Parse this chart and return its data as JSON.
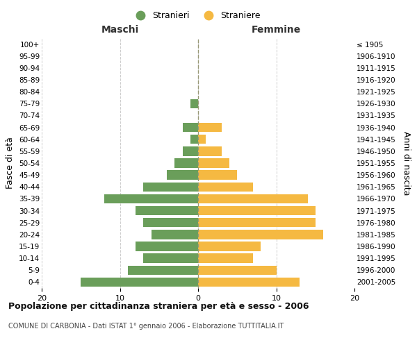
{
  "age_groups": [
    "0-4",
    "5-9",
    "10-14",
    "15-19",
    "20-24",
    "25-29",
    "30-34",
    "35-39",
    "40-44",
    "45-49",
    "50-54",
    "55-59",
    "60-64",
    "65-69",
    "70-74",
    "75-79",
    "80-84",
    "85-89",
    "90-94",
    "95-99",
    "100+"
  ],
  "birth_years": [
    "2001-2005",
    "1996-2000",
    "1991-1995",
    "1986-1990",
    "1981-1985",
    "1976-1980",
    "1971-1975",
    "1966-1970",
    "1961-1965",
    "1956-1960",
    "1951-1955",
    "1946-1950",
    "1941-1945",
    "1936-1940",
    "1931-1935",
    "1926-1930",
    "1921-1925",
    "1916-1920",
    "1911-1915",
    "1906-1910",
    "≤ 1905"
  ],
  "maschi": [
    15,
    9,
    7,
    8,
    6,
    7,
    8,
    12,
    7,
    4,
    3,
    2,
    1,
    2,
    0,
    1,
    0,
    0,
    0,
    0,
    0
  ],
  "femmine": [
    13,
    10,
    7,
    8,
    16,
    15,
    15,
    14,
    7,
    5,
    4,
    3,
    1,
    3,
    0,
    0,
    0,
    0,
    0,
    0,
    0
  ],
  "color_maschi": "#6a9e5a",
  "color_femmine": "#f5b942",
  "title": "Popolazione per cittadinanza straniera per età e sesso - 2006",
  "subtitle": "COMUNE DI CARBONIA - Dati ISTAT 1° gennaio 2006 - Elaborazione TUTTITALIA.IT",
  "ylabel_left": "Fasce di età",
  "ylabel_right": "Anni di nascita",
  "xlabel_left": "Maschi",
  "xlabel_right": "Femmine",
  "legend_maschi": "Stranieri",
  "legend_femmine": "Straniere",
  "xlim": 20,
  "background_color": "#ffffff",
  "grid_color": "#cccccc"
}
